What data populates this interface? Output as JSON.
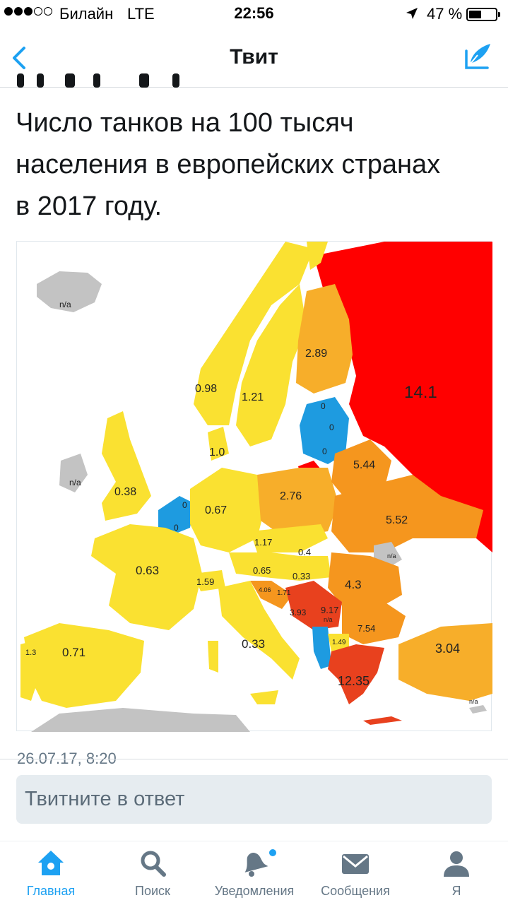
{
  "status_bar": {
    "carrier": "Билайн",
    "network": "LTE",
    "time": "22:56",
    "battery_percent": "47 %",
    "battery_level": 0.47
  },
  "nav": {
    "title": "Твит"
  },
  "tweet": {
    "lines": [
      "Число танков на 100 тысяч",
      "населения в европейских странах",
      "в 2017 году."
    ],
    "timestamp": "26.07.17, 8:20"
  },
  "map": {
    "labels": [
      "n/a",
      "n/a",
      "2.89",
      "14.1",
      "0.98",
      "1.21",
      "0",
      "0",
      "0",
      "1.0",
      "5.44",
      "0.38",
      "0.67",
      "2.76",
      "0",
      "0",
      "5.52",
      "1.17",
      "0.4",
      "n/a",
      "0.63",
      "1.59",
      "0.65",
      "0.33",
      "4.3",
      "4.06",
      "1.71",
      "3.93",
      "9.17",
      "n/a",
      "7.54",
      "1.3",
      "0.71",
      "0.33",
      "1.49",
      "3.04",
      "12.35",
      "n/a"
    ]
  },
  "reply": {
    "placeholder": "Твитните в ответ"
  },
  "tabs": [
    {
      "label": "Главная",
      "icon": "home-icon",
      "active": true
    },
    {
      "label": "Поиск",
      "icon": "search-icon",
      "active": false
    },
    {
      "label": "Уведомления",
      "icon": "bell-icon",
      "active": false
    },
    {
      "label": "Сообщения",
      "icon": "envelope-icon",
      "active": false
    },
    {
      "label": "Я",
      "icon": "person-icon",
      "active": false
    }
  ],
  "colors": {
    "accent": "#1da1f2",
    "russia": "#ff0000",
    "high": "#e8411e",
    "orange": "#f5961e",
    "light_orange": "#f7ae2a",
    "yellow": "#fae131",
    "blue": "#1e9be0",
    "gray": "#c3c3c3"
  }
}
